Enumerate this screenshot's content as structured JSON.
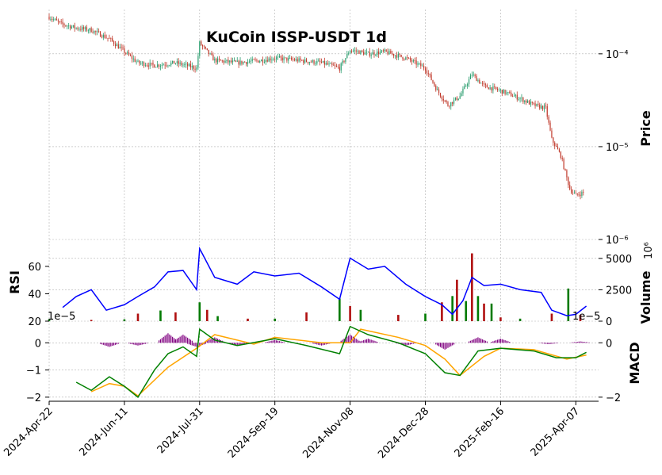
{
  "chart_data": {
    "type": "candlestick",
    "title": "KuCoin ISSP-USDT 1d",
    "x_tick_labels": [
      "2024-Apr-22",
      "2024-Jun-11",
      "2024-Jul-31",
      "2024-Sep-19",
      "2024-Nov-08",
      "2024-Dec-28",
      "2025-Feb-16",
      "2025-Apr-07"
    ],
    "price_panel": {
      "ylabel": "Price",
      "scale": "log",
      "ylim": [
        1e-06,
        0.0003
      ],
      "tick_labels": [
        "10⁻⁴",
        "10⁻⁵",
        "10⁻⁶"
      ],
      "tick_values": [
        0.0001,
        1e-05,
        1e-06
      ],
      "close_path": [
        [
          "2024-04-22",
          0.00025
        ],
        [
          "2024-04-30",
          0.00021
        ],
        [
          "2024-05-10",
          0.00019
        ],
        [
          "2024-05-20",
          0.00018
        ],
        [
          "2024-06-01",
          0.000145
        ],
        [
          "2024-06-11",
          0.000105
        ],
        [
          "2024-06-20",
          8e-05
        ],
        [
          "2024-07-01",
          7.5e-05
        ],
        [
          "2024-07-15",
          8e-05
        ],
        [
          "2024-07-29",
          7e-05
        ],
        [
          "2024-07-31",
          0.00013
        ],
        [
          "2024-08-10",
          8.5e-05
        ],
        [
          "2024-08-25",
          8e-05
        ],
        [
          "2024-09-10",
          8.5e-05
        ],
        [
          "2024-09-19",
          9e-05
        ],
        [
          "2024-10-05",
          8.5e-05
        ],
        [
          "2024-10-20",
          8e-05
        ],
        [
          "2024-11-01",
          7e-05
        ],
        [
          "2024-11-08",
          0.00011
        ],
        [
          "2024-11-20",
          0.0001
        ],
        [
          "2024-12-01",
          0.000105
        ],
        [
          "2024-12-15",
          9e-05
        ],
        [
          "2024-12-28",
          7e-05
        ],
        [
          "2025-01-05",
          4e-05
        ],
        [
          "2025-01-12",
          2.8e-05
        ],
        [
          "2025-01-20",
          3.5e-05
        ],
        [
          "2025-01-28",
          6e-05
        ],
        [
          "2025-02-05",
          4.5e-05
        ],
        [
          "2025-02-16",
          4e-05
        ],
        [
          "2025-03-01",
          3.3e-05
        ],
        [
          "2025-03-10",
          2.8e-05
        ],
        [
          "2025-03-18",
          2.6e-05
        ],
        [
          "2025-03-22",
          1.2e-05
        ],
        [
          "2025-03-28",
          8e-06
        ],
        [
          "2025-04-03",
          3.5e-06
        ],
        [
          "2025-04-07",
          3e-06
        ],
        [
          "2025-04-12",
          3.2e-06
        ]
      ],
      "colors": {
        "up": "#2a9d6e",
        "down": "#c0392b"
      }
    },
    "volume_panel": {
      "ylabel": "Volume",
      "unit_label": "10⁶",
      "tick_labels": [
        "5000",
        "2500",
        "0"
      ],
      "tick_values": [
        5000,
        2500,
        0
      ],
      "ylim": [
        0,
        6000
      ],
      "bars": [
        [
          "2024-04-22",
          150
        ],
        [
          "2024-05-20",
          100
        ],
        [
          "2024-06-11",
          150
        ],
        [
          "2024-06-20",
          600
        ],
        [
          "2024-07-05",
          850
        ],
        [
          "2024-07-15",
          700
        ],
        [
          "2024-07-31",
          1500
        ],
        [
          "2024-08-05",
          900
        ],
        [
          "2024-08-12",
          400
        ],
        [
          "2024-09-01",
          200
        ],
        [
          "2024-09-19",
          200
        ],
        [
          "2024-10-10",
          700
        ],
        [
          "2024-11-01",
          1800
        ],
        [
          "2024-11-08",
          1200
        ],
        [
          "2024-11-15",
          900
        ],
        [
          "2024-12-10",
          500
        ],
        [
          "2024-12-28",
          600
        ],
        [
          "2025-01-08",
          1500
        ],
        [
          "2025-01-15",
          2000
        ],
        [
          "2025-01-18",
          3300
        ],
        [
          "2025-01-24",
          1600
        ],
        [
          "2025-01-28",
          5400
        ],
        [
          "2025-02-01",
          2000
        ],
        [
          "2025-02-05",
          1400
        ],
        [
          "2025-02-10",
          1400
        ],
        [
          "2025-02-16",
          300
        ],
        [
          "2025-03-01",
          200
        ],
        [
          "2025-03-22",
          600
        ],
        [
          "2025-04-02",
          2600
        ],
        [
          "2025-04-10",
          500
        ]
      ],
      "colors": {
        "up": "#007a00",
        "down": "#b01010"
      }
    },
    "rsi_panel": {
      "ylabel": "RSI",
      "tick_labels": [
        "60",
        "40",
        "20"
      ],
      "tick_values": [
        60,
        40,
        20
      ],
      "ylim": [
        20,
        75
      ],
      "series": [
        [
          "2024-05-01",
          30
        ],
        [
          "2024-05-10",
          38
        ],
        [
          "2024-05-20",
          43
        ],
        [
          "2024-05-30",
          28
        ],
        [
          "2024-06-11",
          32
        ],
        [
          "2024-06-20",
          38
        ],
        [
          "2024-07-01",
          45
        ],
        [
          "2024-07-10",
          56
        ],
        [
          "2024-07-20",
          57
        ],
        [
          "2024-07-29",
          43
        ],
        [
          "2024-07-31",
          73
        ],
        [
          "2024-08-10",
          52
        ],
        [
          "2024-08-25",
          47
        ],
        [
          "2024-09-05",
          56
        ],
        [
          "2024-09-19",
          53
        ],
        [
          "2024-10-05",
          55
        ],
        [
          "2024-10-20",
          45
        ],
        [
          "2024-11-01",
          36
        ],
        [
          "2024-11-08",
          66
        ],
        [
          "2024-11-20",
          58
        ],
        [
          "2024-12-01",
          60
        ],
        [
          "2024-12-15",
          47
        ],
        [
          "2024-12-28",
          38
        ],
        [
          "2025-01-08",
          32
        ],
        [
          "2025-01-15",
          25
        ],
        [
          "2025-01-22",
          35
        ],
        [
          "2025-01-28",
          52
        ],
        [
          "2025-02-05",
          46
        ],
        [
          "2025-02-16",
          47
        ],
        [
          "2025-03-01",
          43
        ],
        [
          "2025-03-15",
          41
        ],
        [
          "2025-03-22",
          28
        ],
        [
          "2025-04-01",
          24
        ],
        [
          "2025-04-07",
          25
        ],
        [
          "2025-04-14",
          31
        ]
      ],
      "color": "#0000ff"
    },
    "macd_panel": {
      "ylabel": "MACD",
      "offset_text": "1e−5",
      "right_offset_text": "1e−5",
      "left_tick_labels": [
        "0",
        "−1",
        "−2"
      ],
      "left_tick_values": [
        0,
        -1,
        -2
      ],
      "right_tick_labels": [
        "0",
        "−2"
      ],
      "right_tick_values": [
        0,
        -2
      ],
      "ylim": [
        -2.15,
        0.65
      ],
      "macd": [
        [
          "2024-05-10",
          -1.45
        ],
        [
          "2024-05-20",
          -1.75
        ],
        [
          "2024-06-01",
          -1.25
        ],
        [
          "2024-06-11",
          -1.6
        ],
        [
          "2024-06-20",
          -2.0
        ],
        [
          "2024-07-01",
          -1.0
        ],
        [
          "2024-07-10",
          -0.4
        ],
        [
          "2024-07-20",
          -0.15
        ],
        [
          "2024-07-29",
          -0.5
        ],
        [
          "2024-07-31",
          0.5
        ],
        [
          "2024-08-10",
          0.1
        ],
        [
          "2024-08-25",
          -0.1
        ],
        [
          "2024-09-19",
          0.15
        ],
        [
          "2024-10-10",
          -0.1
        ],
        [
          "2024-11-01",
          -0.4
        ],
        [
          "2024-11-08",
          0.6
        ],
        [
          "2024-11-20",
          0.3
        ],
        [
          "2024-12-10",
          0.0
        ],
        [
          "2024-12-28",
          -0.4
        ],
        [
          "2025-01-10",
          -1.1
        ],
        [
          "2025-01-20",
          -1.2
        ],
        [
          "2025-02-01",
          -0.3
        ],
        [
          "2025-02-16",
          -0.2
        ],
        [
          "2025-03-10",
          -0.3
        ],
        [
          "2025-03-25",
          -0.55
        ],
        [
          "2025-04-07",
          -0.55
        ],
        [
          "2025-04-14",
          -0.35
        ]
      ],
      "signal": [
        [
          "2024-05-20",
          -1.8
        ],
        [
          "2024-06-01",
          -1.5
        ],
        [
          "2024-06-11",
          -1.6
        ],
        [
          "2024-06-20",
          -1.95
        ],
        [
          "2024-07-10",
          -0.9
        ],
        [
          "2024-07-29",
          -0.2
        ],
        [
          "2024-08-10",
          0.3
        ],
        [
          "2024-09-05",
          -0.05
        ],
        [
          "2024-09-19",
          0.2
        ],
        [
          "2024-10-20",
          0.0
        ],
        [
          "2024-11-08",
          0.0
        ],
        [
          "2024-11-15",
          0.5
        ],
        [
          "2024-12-10",
          0.2
        ],
        [
          "2024-12-28",
          -0.1
        ],
        [
          "2025-01-10",
          -0.6
        ],
        [
          "2025-01-20",
          -1.2
        ],
        [
          "2025-02-05",
          -0.5
        ],
        [
          "2025-02-16",
          -0.2
        ],
        [
          "2025-03-10",
          -0.25
        ],
        [
          "2025-04-01",
          -0.6
        ],
        [
          "2025-04-14",
          -0.45
        ]
      ],
      "histogram": [
        [
          "2024-06-01",
          -0.15
        ],
        [
          "2024-06-20",
          -0.1
        ],
        [
          "2024-07-10",
          0.35
        ],
        [
          "2024-07-20",
          0.3
        ],
        [
          "2024-07-29",
          -0.15
        ],
        [
          "2024-08-10",
          0.2
        ],
        [
          "2024-08-25",
          -0.1
        ],
        [
          "2024-09-19",
          0.1
        ],
        [
          "2024-10-20",
          -0.1
        ],
        [
          "2024-11-08",
          0.3
        ],
        [
          "2024-11-20",
          0.15
        ],
        [
          "2024-12-15",
          -0.1
        ],
        [
          "2025-01-10",
          -0.25
        ],
        [
          "2025-02-01",
          0.2
        ],
        [
          "2025-02-16",
          0.15
        ],
        [
          "2025-03-20",
          -0.05
        ],
        [
          "2025-04-10",
          0.05
        ]
      ],
      "colors": {
        "macd": "#008000",
        "signal": "#ffa500",
        "histogram": "#800080"
      }
    },
    "grid": true
  }
}
